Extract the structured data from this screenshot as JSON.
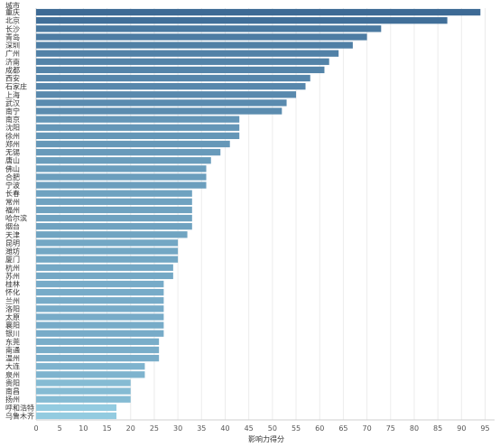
{
  "chart_data": {
    "type": "bar",
    "orientation": "horizontal",
    "title": "",
    "ylabel": "城市",
    "xlabel": "影响力得分",
    "xlim": [
      0,
      97
    ],
    "xticks": [
      0,
      5,
      10,
      15,
      20,
      25,
      30,
      35,
      40,
      45,
      50,
      55,
      60,
      65,
      70,
      75,
      80,
      85,
      90,
      95
    ],
    "grid": "vertical",
    "legend": "none",
    "color_scale": {
      "high": "#3d6a95",
      "low": "#93cbe0"
    },
    "categories": [
      "重庆",
      "北京",
      "长沙",
      "青岛",
      "深圳",
      "广州",
      "济南",
      "成都",
      "西安",
      "石家庄",
      "上海",
      "武汉",
      "南宁",
      "南京",
      "沈阳",
      "徐州",
      "郑州",
      "无锡",
      "唐山",
      "佛山",
      "合肥",
      "宁波",
      "长春",
      "常州",
      "福州",
      "哈尔滨",
      "烟台",
      "天津",
      "昆明",
      "潍坊",
      "厦门",
      "杭州",
      "苏州",
      "桂林",
      "怀化",
      "兰州",
      "洛阳",
      "太原",
      "襄阳",
      "银川",
      "东莞",
      "南通",
      "温州",
      "大连",
      "泉州",
      "贵阳",
      "南昌",
      "扬州",
      "呼和浩特",
      "乌鲁木齐"
    ],
    "values": [
      94,
      87,
      73,
      70,
      67,
      64,
      62,
      61,
      58,
      57,
      55,
      53,
      52,
      43,
      43,
      43,
      41,
      39,
      37,
      36,
      36,
      36,
      33,
      33,
      33,
      33,
      33,
      32,
      30,
      30,
      30,
      29,
      29,
      27,
      27,
      27,
      27,
      27,
      27,
      27,
      26,
      26,
      26,
      23,
      23,
      20,
      20,
      20,
      17,
      17
    ]
  }
}
